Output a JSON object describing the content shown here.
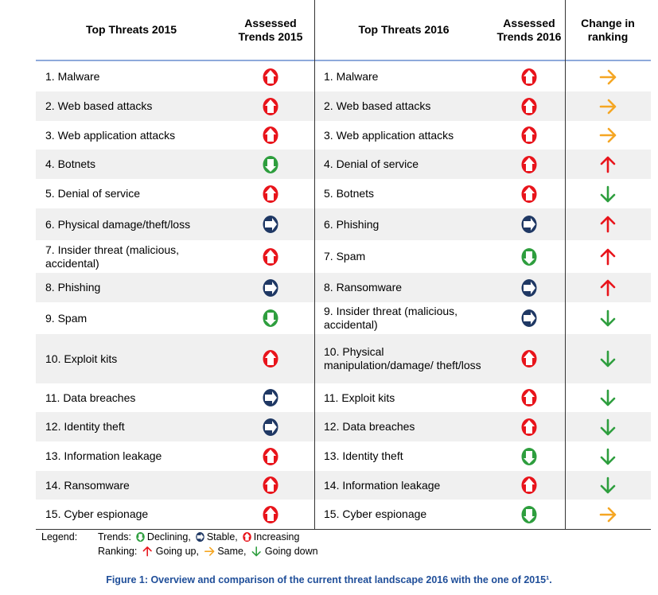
{
  "header": [
    "Top Threats 2015",
    "Assessed Trends 2015",
    "Top Threats 2016",
    "Assessed Trends 2016",
    "Change in ranking"
  ],
  "rows": [
    {
      "threat_2015": "1. Malware",
      "trend_2015": "Increasing",
      "threat_2016": "1. Malware",
      "trend_2016": "Increasing",
      "change": "Same"
    },
    {
      "threat_2015": "2. Web based attacks",
      "trend_2015": "Increasing",
      "threat_2016": "2. Web based attacks",
      "trend_2016": "Increasing",
      "change": "Same"
    },
    {
      "threat_2015": "3. Web application attacks",
      "trend_2015": "Increasing",
      "threat_2016": "3. Web application attacks",
      "trend_2016": "Increasing",
      "change": "Same"
    },
    {
      "threat_2015": "4. Botnets",
      "trend_2015": "Declining",
      "threat_2016": "4. Denial of service",
      "trend_2016": "Increasing",
      "change": "Going up"
    },
    {
      "threat_2015": "5. Denial of service",
      "trend_2015": "Increasing",
      "threat_2016": "5. Botnets",
      "trend_2016": "Increasing",
      "change": "Going down"
    },
    {
      "threat_2015": "6. Physical damage/theft/loss",
      "trend_2015": "Stable",
      "threat_2016": "6. Phishing",
      "trend_2016": "Stable",
      "change": "Going up"
    },
    {
      "threat_2015": "7. Insider threat (malicious, accidental)",
      "trend_2015": "Increasing",
      "threat_2016": "7. Spam",
      "trend_2016": "Declining",
      "change": "Going up"
    },
    {
      "threat_2015": "8. Phishing",
      "trend_2015": "Stable",
      "threat_2016": "8. Ransomware",
      "trend_2016": "Stable",
      "change": "Going up"
    },
    {
      "threat_2015": "9. Spam",
      "trend_2015": "Declining",
      "threat_2016": "9. Insider threat (malicious, accidental)",
      "trend_2016": "Stable",
      "change": "Going down"
    },
    {
      "threat_2015": "10. Exploit kits",
      "trend_2015": "Increasing",
      "threat_2016": "10. Physical manipulation/damage/ theft/loss",
      "trend_2016": "Increasing",
      "change": "Going down"
    },
    {
      "threat_2015": "11. Data breaches",
      "trend_2015": "Stable",
      "threat_2016": "11. Exploit kits",
      "trend_2016": "Increasing",
      "change": "Going down"
    },
    {
      "threat_2015": "12. Identity theft",
      "trend_2015": "Stable",
      "threat_2016": "12. Data breaches",
      "trend_2016": "Increasing",
      "change": "Going down"
    },
    {
      "threat_2015": "13. Information leakage",
      "trend_2015": "Increasing",
      "threat_2016": "13. Identity theft",
      "trend_2016": "Declining",
      "change": "Going down"
    },
    {
      "threat_2015": "14. Ransomware",
      "trend_2015": "Increasing",
      "threat_2016": "14. Information leakage",
      "trend_2016": "Increasing",
      "change": "Going down"
    },
    {
      "threat_2015": "15. Cyber espionage",
      "trend_2015": "Increasing",
      "threat_2016": "15. Cyber espionage",
      "trend_2016": "Declining",
      "change": "Same"
    }
  ],
  "legend": {
    "label": "Legend:",
    "trends_label": "Trends:",
    "trends": [
      "Declining",
      "Stable",
      "Increasing"
    ],
    "ranking_label": "Ranking:",
    "ranking": [
      "Going up",
      "Same",
      "Going down"
    ]
  },
  "caption": "Figure 1: Overview and comparison of the current threat landscape 2016 with the one of 2015¹."
}
